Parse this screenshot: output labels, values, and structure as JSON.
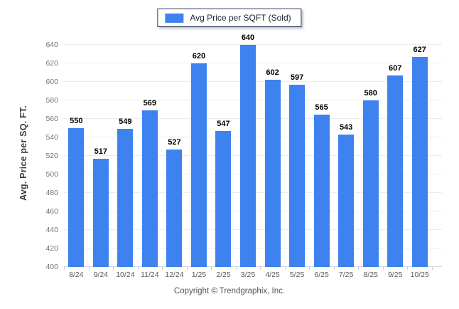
{
  "legend": {
    "label": "Avg Price per SQFT (Sold)"
  },
  "footer": "Copyright © Trendgraphix, Inc.",
  "chart_data": {
    "type": "bar",
    "title": "Avg Price per SQFT (Sold)",
    "categories": [
      "8/24",
      "9/24",
      "10/24",
      "11/24",
      "12/24",
      "1/25",
      "2/25",
      "3/25",
      "4/25",
      "5/25",
      "6/25",
      "7/25",
      "8/25",
      "9/25",
      "10/25"
    ],
    "values": [
      550,
      517,
      549,
      569,
      527,
      620,
      547,
      640,
      602,
      597,
      565,
      543,
      580,
      607,
      627
    ],
    "xlabel": "",
    "ylabel": "Avg. Price per SQ. FT.",
    "ylim": [
      400,
      640
    ],
    "ytick_step": 20,
    "grid": true,
    "legend_position": "top",
    "bar_color": "#3e82f0",
    "value_labels": true
  }
}
